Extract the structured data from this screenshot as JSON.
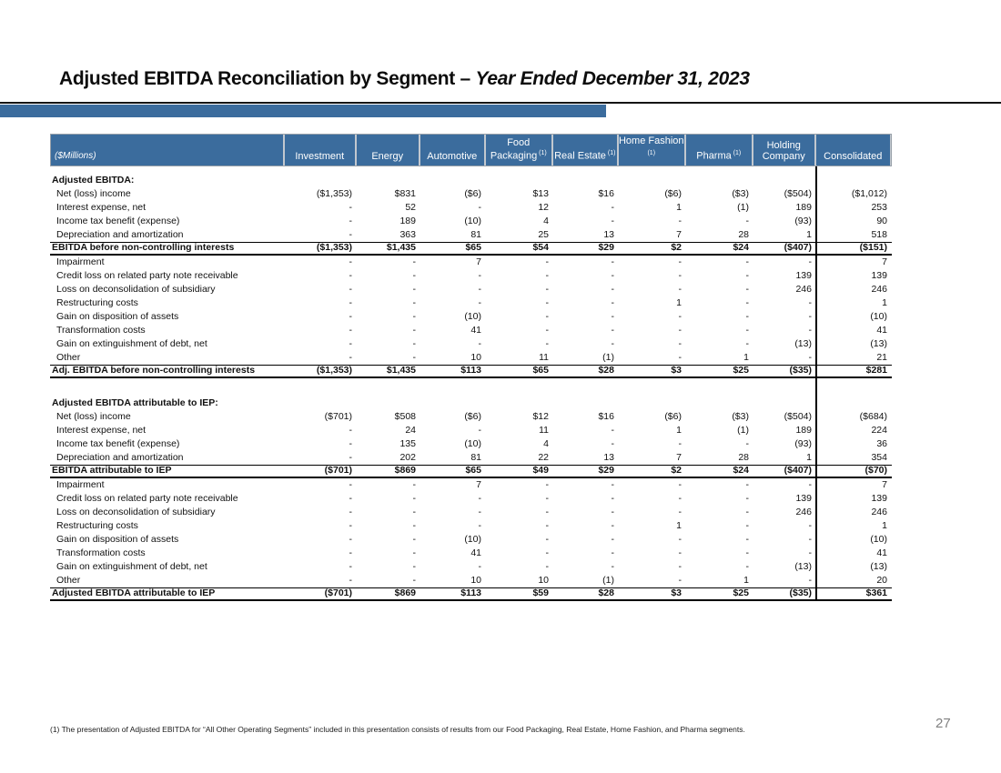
{
  "slide": {
    "title_main": "Adjusted EBITDA Reconciliation by Segment – ",
    "title_italic": "Year Ended December 31, 2023",
    "page_number": "27",
    "footnote": "(1) The presentation of Adjusted EBITDA for “All Other Operating Segments” included in this presentation consists of results from our Food Packaging, Real Estate, Home Fashion, and Pharma segments."
  },
  "colors": {
    "accent_blue": "#3b6c9d",
    "header_text": "#ffffff",
    "page_number_gray": "#818181"
  },
  "table": {
    "unit_label": "($Millions)",
    "columns": [
      {
        "label": "Investment",
        "sup": ""
      },
      {
        "label": "Energy",
        "sup": ""
      },
      {
        "label": "Automotive",
        "sup": ""
      },
      {
        "label": "Food Packaging",
        "sup": "(1)"
      },
      {
        "label": "Real Estate",
        "sup": "(1)"
      },
      {
        "label": "Home Fashion",
        "sup": "(1)"
      },
      {
        "label": "Pharma",
        "sup": "(1)"
      },
      {
        "label": "Holding Company",
        "sup": ""
      },
      {
        "label": "Consolidated",
        "sup": ""
      }
    ],
    "sections": [
      {
        "heading": "Adjusted EBITDA:",
        "rows": [
          {
            "label": "Net (loss) income",
            "total": false,
            "values": [
              "($1,353)",
              "$831",
              "($6)",
              "$13",
              "$16",
              "($6)",
              "($3)",
              "($504)",
              "($1,012)"
            ]
          },
          {
            "label": "Interest expense, net",
            "total": false,
            "values": [
              "-",
              "52",
              "-",
              "12",
              "-",
              "1",
              "(1)",
              "189",
              "253"
            ]
          },
          {
            "label": "Income tax benefit (expense)",
            "total": false,
            "values": [
              "-",
              "189",
              "(10)",
              "4",
              "-",
              "-",
              "-",
              "(93)",
              "90"
            ]
          },
          {
            "label": "Depreciation and amortization",
            "total": false,
            "values": [
              "-",
              "363",
              "81",
              "25",
              "13",
              "7",
              "28",
              "1",
              "518"
            ]
          },
          {
            "label": "EBITDA before non-controlling interests",
            "total": true,
            "values": [
              "($1,353)",
              "$1,435",
              "$65",
              "$54",
              "$29",
              "$2",
              "$24",
              "($407)",
              "($151)"
            ]
          },
          {
            "label": "Impairment",
            "total": false,
            "values": [
              "-",
              "-",
              "7",
              "-",
              "-",
              "-",
              "-",
              "-",
              "7"
            ]
          },
          {
            "label": "Credit loss on related party note receivable",
            "total": false,
            "values": [
              "-",
              "-",
              "-",
              "-",
              "-",
              "-",
              "-",
              "139",
              "139"
            ]
          },
          {
            "label": "Loss on deconsolidation of subsidiary",
            "total": false,
            "values": [
              "-",
              "-",
              "-",
              "-",
              "-",
              "-",
              "-",
              "246",
              "246"
            ]
          },
          {
            "label": "Restructuring costs",
            "total": false,
            "values": [
              "-",
              "-",
              "-",
              "-",
              "-",
              "1",
              "-",
              "-",
              "1"
            ]
          },
          {
            "label": "Gain on disposition of assets",
            "total": false,
            "values": [
              "-",
              "-",
              "(10)",
              "-",
              "-",
              "-",
              "-",
              "-",
              "(10)"
            ]
          },
          {
            "label": "Transformation costs",
            "total": false,
            "values": [
              "-",
              "-",
              "41",
              "-",
              "-",
              "-",
              "-",
              "-",
              "41"
            ]
          },
          {
            "label": "Gain on extinguishment of debt, net",
            "total": false,
            "values": [
              "-",
              "-",
              "-",
              "-",
              "-",
              "-",
              "-",
              "(13)",
              "(13)"
            ]
          },
          {
            "label": "Other",
            "total": false,
            "values": [
              "-",
              "-",
              "10",
              "11",
              "(1)",
              "-",
              "1",
              "-",
              "21"
            ]
          },
          {
            "label": "Adj. EBITDA before non-controlling interests",
            "total": true,
            "values": [
              "($1,353)",
              "$1,435",
              "$113",
              "$65",
              "$28",
              "$3",
              "$25",
              "($35)",
              "$281"
            ]
          }
        ]
      },
      {
        "heading": "Adjusted EBITDA attributable to IEP:",
        "rows": [
          {
            "label": "Net (loss) income",
            "total": false,
            "values": [
              "($701)",
              "$508",
              "($6)",
              "$12",
              "$16",
              "($6)",
              "($3)",
              "($504)",
              "($684)"
            ]
          },
          {
            "label": "Interest expense, net",
            "total": false,
            "values": [
              "-",
              "24",
              "-",
              "11",
              "-",
              "1",
              "(1)",
              "189",
              "224"
            ]
          },
          {
            "label": "Income tax benefit (expense)",
            "total": false,
            "values": [
              "-",
              "135",
              "(10)",
              "4",
              "-",
              "-",
              "-",
              "(93)",
              "36"
            ]
          },
          {
            "label": "Depreciation and amortization",
            "total": false,
            "values": [
              "-",
              "202",
              "81",
              "22",
              "13",
              "7",
              "28",
              "1",
              "354"
            ]
          },
          {
            "label": "EBITDA attributable to IEP",
            "total": true,
            "values": [
              "($701)",
              "$869",
              "$65",
              "$49",
              "$29",
              "$2",
              "$24",
              "($407)",
              "($70)"
            ]
          },
          {
            "label": "Impairment",
            "total": false,
            "values": [
              "-",
              "-",
              "7",
              "-",
              "-",
              "-",
              "-",
              "-",
              "7"
            ]
          },
          {
            "label": "Credit loss on related party note receivable",
            "total": false,
            "values": [
              "-",
              "-",
              "-",
              "-",
              "-",
              "-",
              "-",
              "139",
              "139"
            ]
          },
          {
            "label": "Loss on deconsolidation of subsidiary",
            "total": false,
            "values": [
              "-",
              "-",
              "-",
              "-",
              "-",
              "-",
              "-",
              "246",
              "246"
            ]
          },
          {
            "label": "Restructuring costs",
            "total": false,
            "values": [
              "-",
              "-",
              "-",
              "-",
              "-",
              "1",
              "-",
              "-",
              "1"
            ]
          },
          {
            "label": "Gain on disposition of assets",
            "total": false,
            "values": [
              "-",
              "-",
              "(10)",
              "-",
              "-",
              "-",
              "-",
              "-",
              "(10)"
            ]
          },
          {
            "label": "Transformation costs",
            "total": false,
            "values": [
              "-",
              "-",
              "41",
              "-",
              "-",
              "-",
              "-",
              "-",
              "41"
            ]
          },
          {
            "label": "Gain on extinguishment of debt, net",
            "total": false,
            "values": [
              "-",
              "-",
              "-",
              "-",
              "-",
              "-",
              "-",
              "(13)",
              "(13)"
            ]
          },
          {
            "label": "Other",
            "total": false,
            "values": [
              "-",
              "-",
              "10",
              "10",
              "(1)",
              "-",
              "1",
              "-",
              "20"
            ]
          },
          {
            "label": "Adjusted EBITDA attributable to IEP",
            "total": true,
            "values": [
              "($701)",
              "$869",
              "$113",
              "$59",
              "$28",
              "$3",
              "$25",
              "($35)",
              "$361"
            ]
          }
        ]
      }
    ]
  }
}
